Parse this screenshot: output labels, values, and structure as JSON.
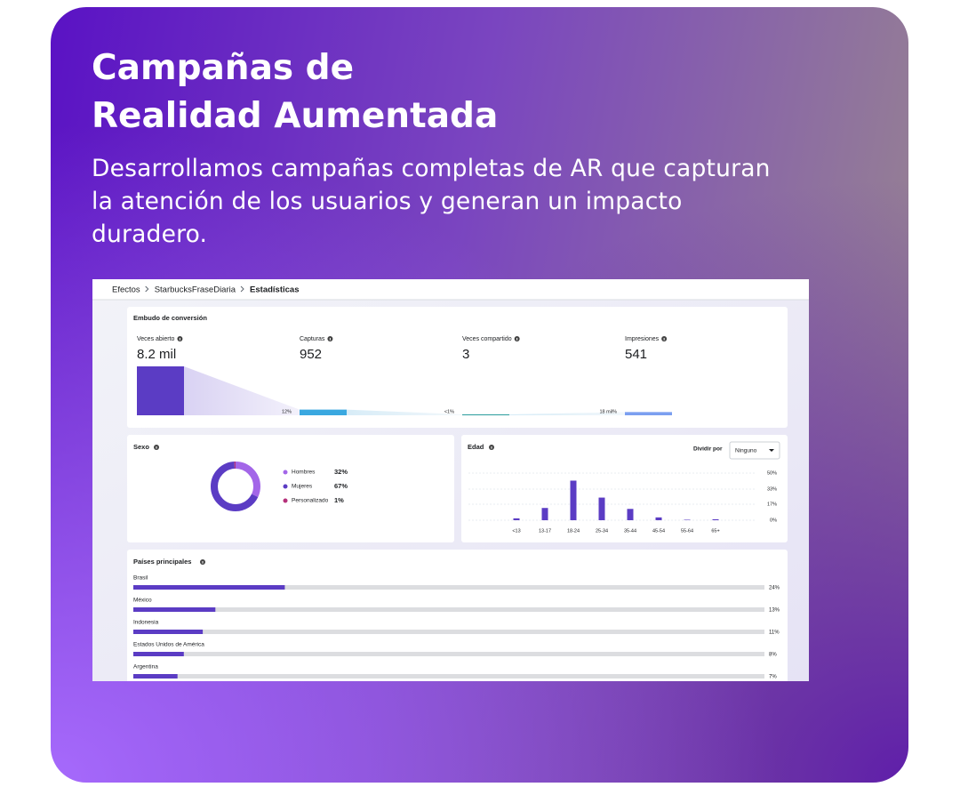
{
  "header": {
    "title_lines": [
      "Campañas de",
      "Realidad Aumentada"
    ],
    "subtitle_lines": [
      "Desarrollamos campañas completas de AR que capturan",
      "la atención de los usuarios y generan un impacto",
      "duradero."
    ]
  },
  "dashboard": {
    "breadcrumb": [
      "Efectos",
      "StarbucksFraseDiaria",
      "Estadísticas"
    ],
    "funnel": {
      "title": "Embudo de conversión",
      "metrics": [
        {
          "label": "Veces abierto",
          "value": 8200,
          "value_label": "8.2 mil",
          "color": "#5b3cc4"
        },
        {
          "label": "Capturas",
          "value": 952,
          "color": "#3aa8e0"
        },
        {
          "label": "Veces compartido",
          "value": 3,
          "color": "#2a9d9d"
        },
        {
          "label": "Impresiones",
          "value": 541,
          "color": "#7b9ff0"
        }
      ],
      "rates": [
        "12%",
        "<1%",
        "18 mil%"
      ]
    },
    "sex": {
      "title": "Sexo",
      "items": [
        {
          "name": "Hombres",
          "value": 32,
          "value_label": "32%",
          "color": "#a366e8"
        },
        {
          "name": "Mujeres",
          "value": 67,
          "value_label": "67%",
          "color": "#5b3cc4"
        },
        {
          "name": "Personalizado",
          "value": 1,
          "value_label": "1%",
          "color": "#b5307a"
        }
      ]
    },
    "age": {
      "title": "Edad",
      "split_label": "Dividir por",
      "split_value": "Ninguno",
      "categories": [
        "<13",
        "13-17",
        "18-24",
        "25-34",
        "35-44",
        "45-54",
        "55-64",
        "65+"
      ],
      "values": [
        2,
        13,
        42,
        24,
        12,
        3,
        0.5,
        1
      ],
      "color": "#5b3cc4",
      "ylim": [
        0,
        50
      ],
      "yticks": [
        {
          "value": 0,
          "label": "0%"
        },
        {
          "value": 17,
          "label": "17%"
        },
        {
          "value": 33,
          "label": "33%"
        },
        {
          "value": 50,
          "label": "50%"
        }
      ]
    },
    "countries": {
      "title": "Países principales",
      "xlim": [
        0,
        100
      ],
      "color": "#5b3cc4",
      "items": [
        {
          "name": "Brasil",
          "value": 24,
          "value_label": "24%"
        },
        {
          "name": "México",
          "value": 13,
          "value_label": "13%"
        },
        {
          "name": "Indonesia",
          "value": 11,
          "value_label": "11%"
        },
        {
          "name": "Estados Unidos de América",
          "value": 8,
          "value_label": "8%"
        },
        {
          "name": "Argentina",
          "value": 7,
          "value_label": "7%"
        }
      ]
    }
  }
}
